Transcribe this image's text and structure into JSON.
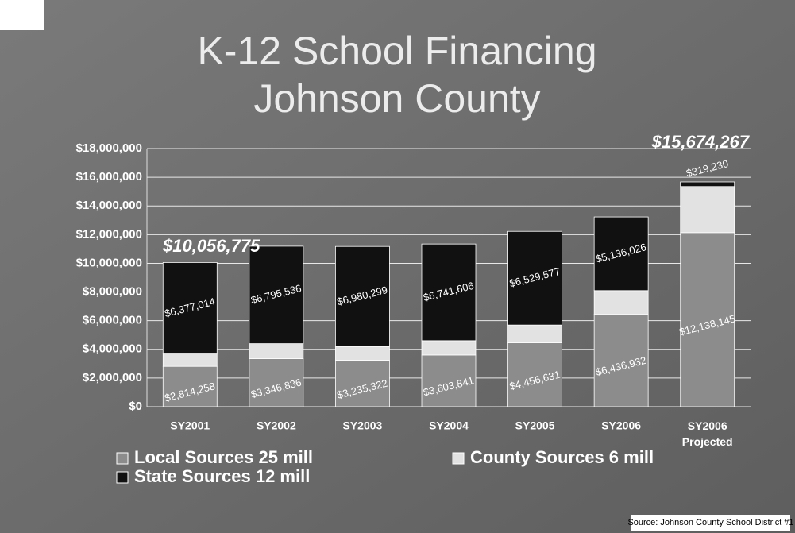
{
  "chart_data": {
    "type": "stacked_bar",
    "title": "K-12 School Financing",
    "subtitle": "Johnson County",
    "categories": [
      "SY2001",
      "SY2002",
      "SY2003",
      "SY2004",
      "SY2005",
      "SY2006",
      "SY2006 Projected"
    ],
    "series": [
      {
        "name": "Local Sources 25 mill",
        "color": "#8c8c8c",
        "values": [
          2814258,
          3346836,
          3235322,
          3603841,
          4456631,
          6436932,
          12138145
        ],
        "value_labels": [
          "$2,814,258",
          "$3,346,836",
          "$3,235,322",
          "$3,603,841",
          "$4,456,631",
          "$6,436,932",
          "$12,138,145"
        ]
      },
      {
        "name": "County Sources 6 mill",
        "color": "#e2e2e2",
        "values": [
          865503,
          1050000,
          960000,
          1000000,
          1240000,
          1660000,
          3216892
        ]
      },
      {
        "name": "State Sources 12 mill",
        "color": "#111111",
        "values": [
          6377014,
          6795536,
          6980299,
          6741606,
          6529577,
          5136026,
          319230
        ],
        "value_labels": [
          "$6,377,014",
          "$6,795,536",
          "$6,980,299",
          "$6,741,606",
          "$6,529,577",
          "$5,136,026",
          "$319,230"
        ]
      }
    ],
    "annotations": [
      "$10,056,775",
      "$15,674,267"
    ],
    "source": "Source: Johnson County School District #1",
    "ylim": [
      0,
      18000000
    ],
    "yticks": [
      {
        "value": 0,
        "label": "$0"
      },
      {
        "value": 2000000,
        "label": "$2,000,000"
      },
      {
        "value": 4000000,
        "label": "$4,000,000"
      },
      {
        "value": 6000000,
        "label": "$6,000,000"
      },
      {
        "value": 8000000,
        "label": "$8,000,000"
      },
      {
        "value": 10000000,
        "label": "$10,000,000"
      },
      {
        "value": 12000000,
        "label": "$12,000,000"
      },
      {
        "value": 14000000,
        "label": "$14,000,000"
      },
      {
        "value": 16000000,
        "label": "$16,000,000"
      },
      {
        "value": 18000000,
        "label": "$18,000,000"
      }
    ],
    "grid": true
  }
}
